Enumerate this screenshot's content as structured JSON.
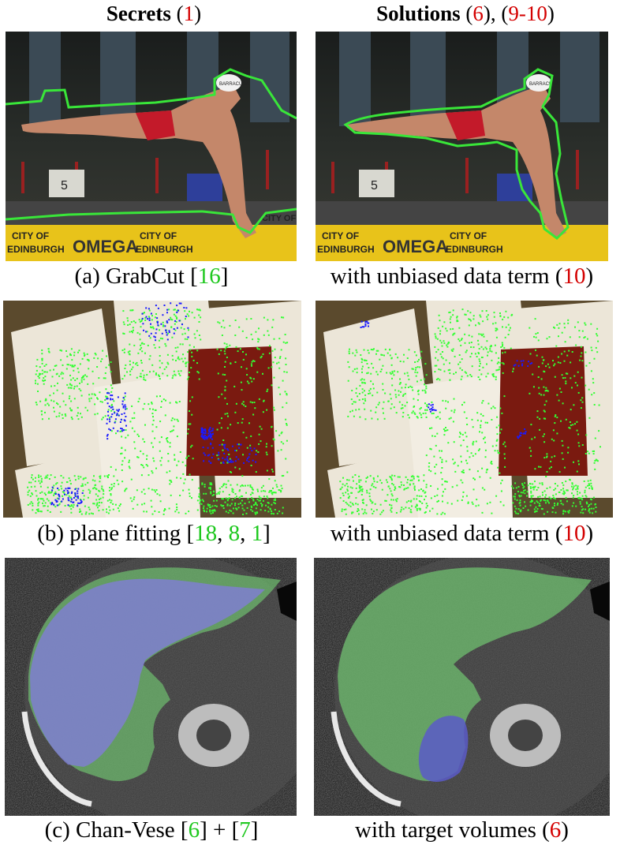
{
  "headers": {
    "left": {
      "word": "Secrets",
      "open": "(",
      "num": "1",
      "close": ")"
    },
    "right": {
      "word": "Solutions",
      "open1": "(",
      "num1": "6",
      "mid": "), (",
      "num2a": "9",
      "dash": "-",
      "num2b": "10",
      "close": ")"
    }
  },
  "captions": {
    "a_left": {
      "pre": "(a) GrabCut [",
      "ref": "16",
      "post": "]"
    },
    "a_right": {
      "pre": "with unbiased data term (",
      "ref": "10",
      "post": ")"
    },
    "b_left": {
      "pre": "(b) plane fitting [",
      "ref1": "18",
      "sep1": ", ",
      "ref2": "8",
      "sep2": ", ",
      "ref3": "1",
      "post": "]"
    },
    "b_right": {
      "pre": "with unbiased data term (",
      "ref": "10",
      "post": ")"
    },
    "c_left": {
      "pre": "(c) Chan-Vese [",
      "ref1": "6",
      "mid": "] + [",
      "ref2": "7",
      "post": "]"
    },
    "c_right": {
      "pre": "with target volumes (",
      "ref": "6",
      "post": ")"
    }
  },
  "image_text": {
    "cap_logo": "BARRACUDA",
    "lane": "5",
    "banner_a": "CITY OF",
    "banner_b": "EDINBURGH",
    "banner_brand": "OMEGA"
  },
  "colors": {
    "citation_green": "#1ec81e",
    "equation_red": "#d40000",
    "contour_green": "#39e639",
    "point_green": "#33ff33",
    "point_blue": "#1a1aff",
    "region_blue": "#7f7fd0",
    "region_green": "#6fbf6f"
  }
}
